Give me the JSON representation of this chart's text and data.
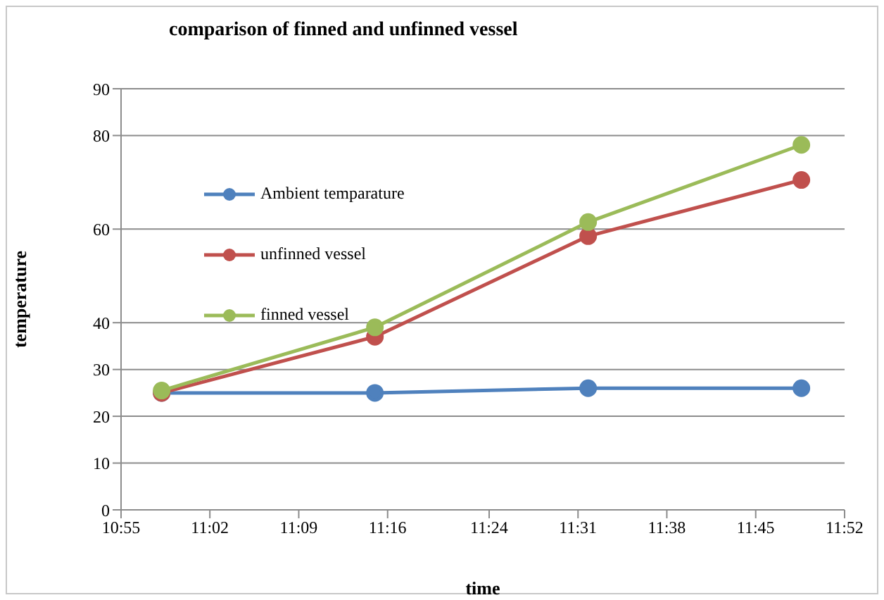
{
  "chart_data": {
    "type": "line",
    "title": "comparison of finned and unfinned vessel",
    "xlabel": "time",
    "ylabel": "temperature",
    "x": [
      10.97,
      11.25,
      11.53,
      11.81
    ],
    "series": [
      {
        "name": "Ambient temparature",
        "color": "#4f81bd",
        "values": [
          25,
          25,
          26,
          26
        ]
      },
      {
        "name": "unfinned vessel",
        "color": "#c0504d",
        "values": [
          25,
          37,
          58.5,
          70.5
        ]
      },
      {
        "name": "finned vessel",
        "color": "#9bbb59",
        "values": [
          25.5,
          39,
          61.5,
          78
        ]
      }
    ],
    "xlim": [
      10.9167,
      11.8667
    ],
    "xticks": [
      {
        "value": 10.9167,
        "label": "10:55"
      },
      {
        "value": 11.0333,
        "label": "11:02"
      },
      {
        "value": 11.15,
        "label": "11:09"
      },
      {
        "value": 11.2667,
        "label": "11:16"
      },
      {
        "value": 11.4,
        "label": "11:24"
      },
      {
        "value": 11.5167,
        "label": "11:31"
      },
      {
        "value": 11.6333,
        "label": "11:38"
      },
      {
        "value": 11.75,
        "label": "11:45"
      },
      {
        "value": 11.8667,
        "label": "11:52"
      }
    ],
    "ylim": [
      0,
      90
    ],
    "yticks": [
      0,
      10,
      20,
      30,
      40,
      60,
      80,
      90
    ],
    "grid": "y",
    "legend": "left",
    "marker": "circle",
    "line_style": "solid"
  }
}
